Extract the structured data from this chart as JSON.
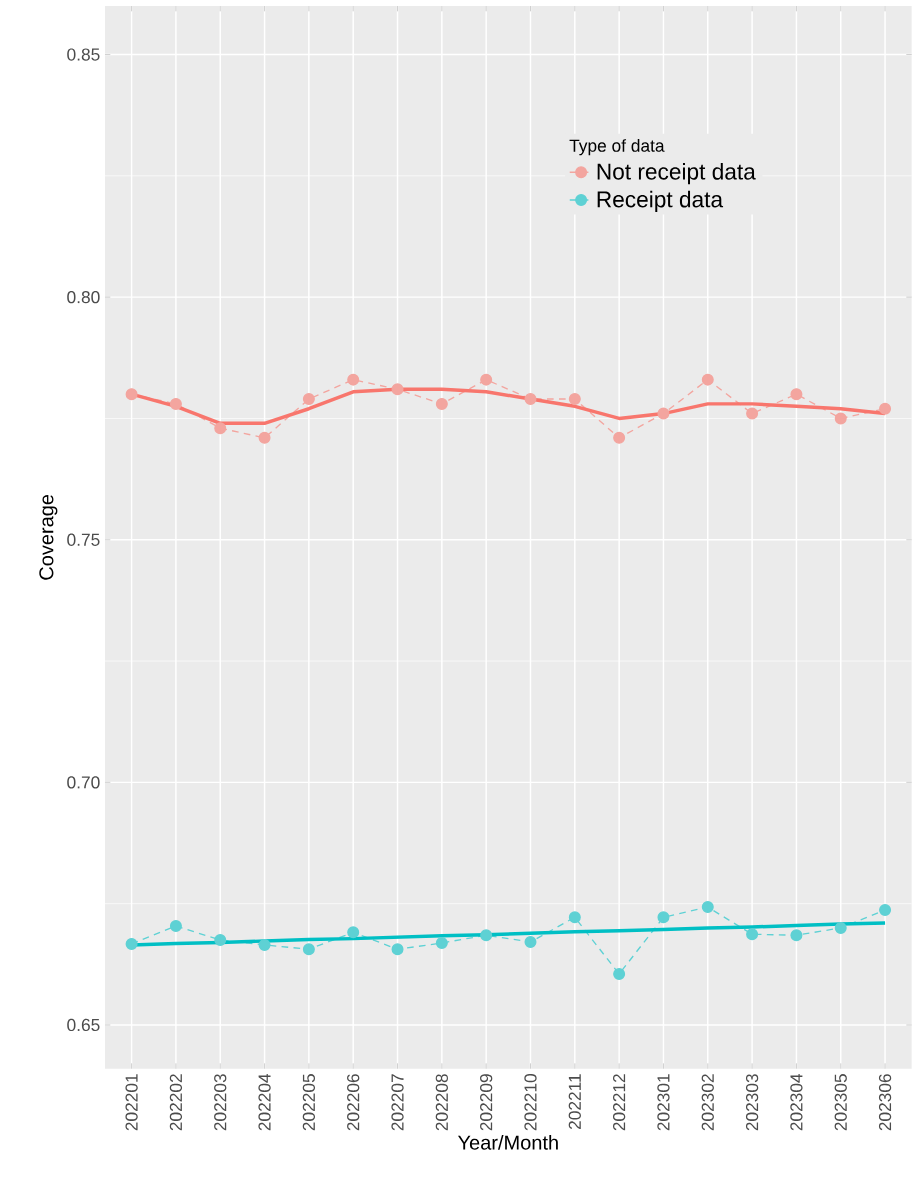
{
  "chart_data": {
    "type": "line",
    "xlabel": "Year/Month",
    "ylabel": "Coverage",
    "legend_title": "Type of data",
    "categories": [
      "202201",
      "202202",
      "202203",
      "202204",
      "202205",
      "202206",
      "202207",
      "202208",
      "202209",
      "202210",
      "202211",
      "202212",
      "202301",
      "202302",
      "202303",
      "202304",
      "202305",
      "202306"
    ],
    "series": [
      {
        "name": "Not receipt data",
        "color": "#f3a59f",
        "line_style": "dashed",
        "marker": "circle",
        "values": [
          0.78,
          0.778,
          0.773,
          0.771,
          0.779,
          0.783,
          0.781,
          0.778,
          0.783,
          0.779,
          0.779,
          0.771,
          0.776,
          0.783,
          0.776,
          0.78,
          0.775,
          0.777
        ]
      },
      {
        "name": "Receipt data",
        "color": "#5ed1d4",
        "line_style": "dashed",
        "marker": "circle",
        "values": [
          0.6667,
          0.6704,
          0.6675,
          0.6665,
          0.6656,
          0.6691,
          0.6656,
          0.6669,
          0.6685,
          0.6671,
          0.6722,
          0.6605,
          0.6722,
          0.6743,
          0.6687,
          0.6685,
          0.67,
          0.6737
        ]
      },
      {
        "color": "#f8766d",
        "line_style": "solid",
        "marker": "none",
        "values": [
          0.78,
          0.7775,
          0.774,
          0.774,
          0.777,
          0.7805,
          0.781,
          0.781,
          0.7805,
          0.779,
          0.7775,
          0.775,
          0.776,
          0.778,
          0.778,
          0.7775,
          0.777,
          0.776
        ]
      },
      {
        "color": "#00bfc4",
        "line_style": "solid",
        "marker": "none",
        "values": [
          0.6665,
          0.6668,
          0.667,
          0.6673,
          0.6676,
          0.6678,
          0.6681,
          0.6684,
          0.6686,
          0.6689,
          0.6692,
          0.6694,
          0.6697,
          0.67,
          0.6702,
          0.6705,
          0.6708,
          0.671
        ]
      }
    ],
    "ylim": [
      0.641,
      0.86
    ],
    "yticks": [
      {
        "value": 0.65,
        "label": "0.65"
      },
      {
        "value": 0.7,
        "label": "0.70"
      },
      {
        "value": 0.75,
        "label": "0.75"
      },
      {
        "value": 0.8,
        "label": "0.80"
      },
      {
        "value": 0.85,
        "label": "0.85"
      }
    ],
    "grid": true,
    "legend": "top right"
  }
}
